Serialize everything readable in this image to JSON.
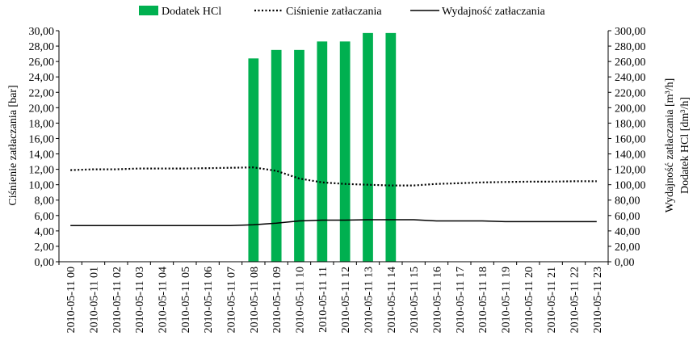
{
  "chart_data": {
    "type": "bar",
    "legend_position": "top",
    "grid": false,
    "categories": [
      "2010-05-11 00",
      "2010-05-11 01",
      "2010-05-11 02",
      "2010-05-11 03",
      "2010-05-11 04",
      "2010-05-11 05",
      "2010-05-11 06",
      "2010-05-11 07",
      "2010-05-11 08",
      "2010-05-11 09",
      "2010-05-11 10",
      "2010-05-11 11",
      "2010-05-11 12",
      "2010-05-11 13",
      "2010-05-11 14",
      "2010-05-11 15",
      "2010-05-11 16",
      "2010-05-11 17",
      "2010-05-11 18",
      "2010-05-11 19",
      "2010-05-11 20",
      "2010-05-11 21",
      "2010-05-11 22",
      "2010-05-11 23"
    ],
    "y_left": {
      "label": "Ciśnienie zatłaczania [bar]",
      "min": 0,
      "max": 30,
      "step": 2,
      "tick_labels": [
        "0,00",
        "2,00",
        "4,00",
        "6,00",
        "8,00",
        "10,00",
        "12,00",
        "14,00",
        "16,00",
        "18,00",
        "20,00",
        "22,00",
        "24,00",
        "26,00",
        "28,00",
        "30,00"
      ]
    },
    "y_right": {
      "label_line1": "Wydajność zatłaczania [m³/h]",
      "label_line2": "Dodatek HCl [dm³/h]",
      "min": 0,
      "max": 300,
      "step": 20,
      "tick_labels": [
        "0,00",
        "20,00",
        "40,00",
        "60,00",
        "80,00",
        "100,00",
        "120,00",
        "140,00",
        "160,00",
        "180,00",
        "200,00",
        "220,00",
        "240,00",
        "260,00",
        "280,00",
        "300,00"
      ]
    },
    "series": [
      {
        "name": "Dodatek HCl",
        "type": "bar",
        "axis": "right",
        "color": "#00b050",
        "values": [
          null,
          null,
          null,
          null,
          null,
          null,
          null,
          null,
          264,
          275,
          275,
          286,
          286,
          297,
          297,
          null,
          null,
          null,
          null,
          null,
          null,
          null,
          null,
          null
        ]
      },
      {
        "name": "Ciśnienie zatłaczania",
        "type": "line",
        "style": "dotted",
        "axis": "left",
        "color": "#000000",
        "values": [
          11.9,
          12.0,
          12.0,
          12.1,
          12.1,
          12.1,
          12.15,
          12.2,
          12.25,
          11.8,
          10.8,
          10.3,
          10.1,
          10.0,
          9.9,
          9.9,
          10.1,
          10.2,
          10.3,
          10.35,
          10.4,
          10.4,
          10.45,
          10.45
        ]
      },
      {
        "name": "Wydajność zatłaczania",
        "type": "line",
        "style": "solid",
        "axis": "right",
        "color": "#000000",
        "values": [
          47,
          47,
          47,
          47,
          47,
          47,
          47,
          47,
          48,
          50,
          53,
          54,
          54,
          54.5,
          54.5,
          54.5,
          53,
          53,
          53,
          52,
          52,
          52,
          52,
          52
        ]
      }
    ]
  }
}
